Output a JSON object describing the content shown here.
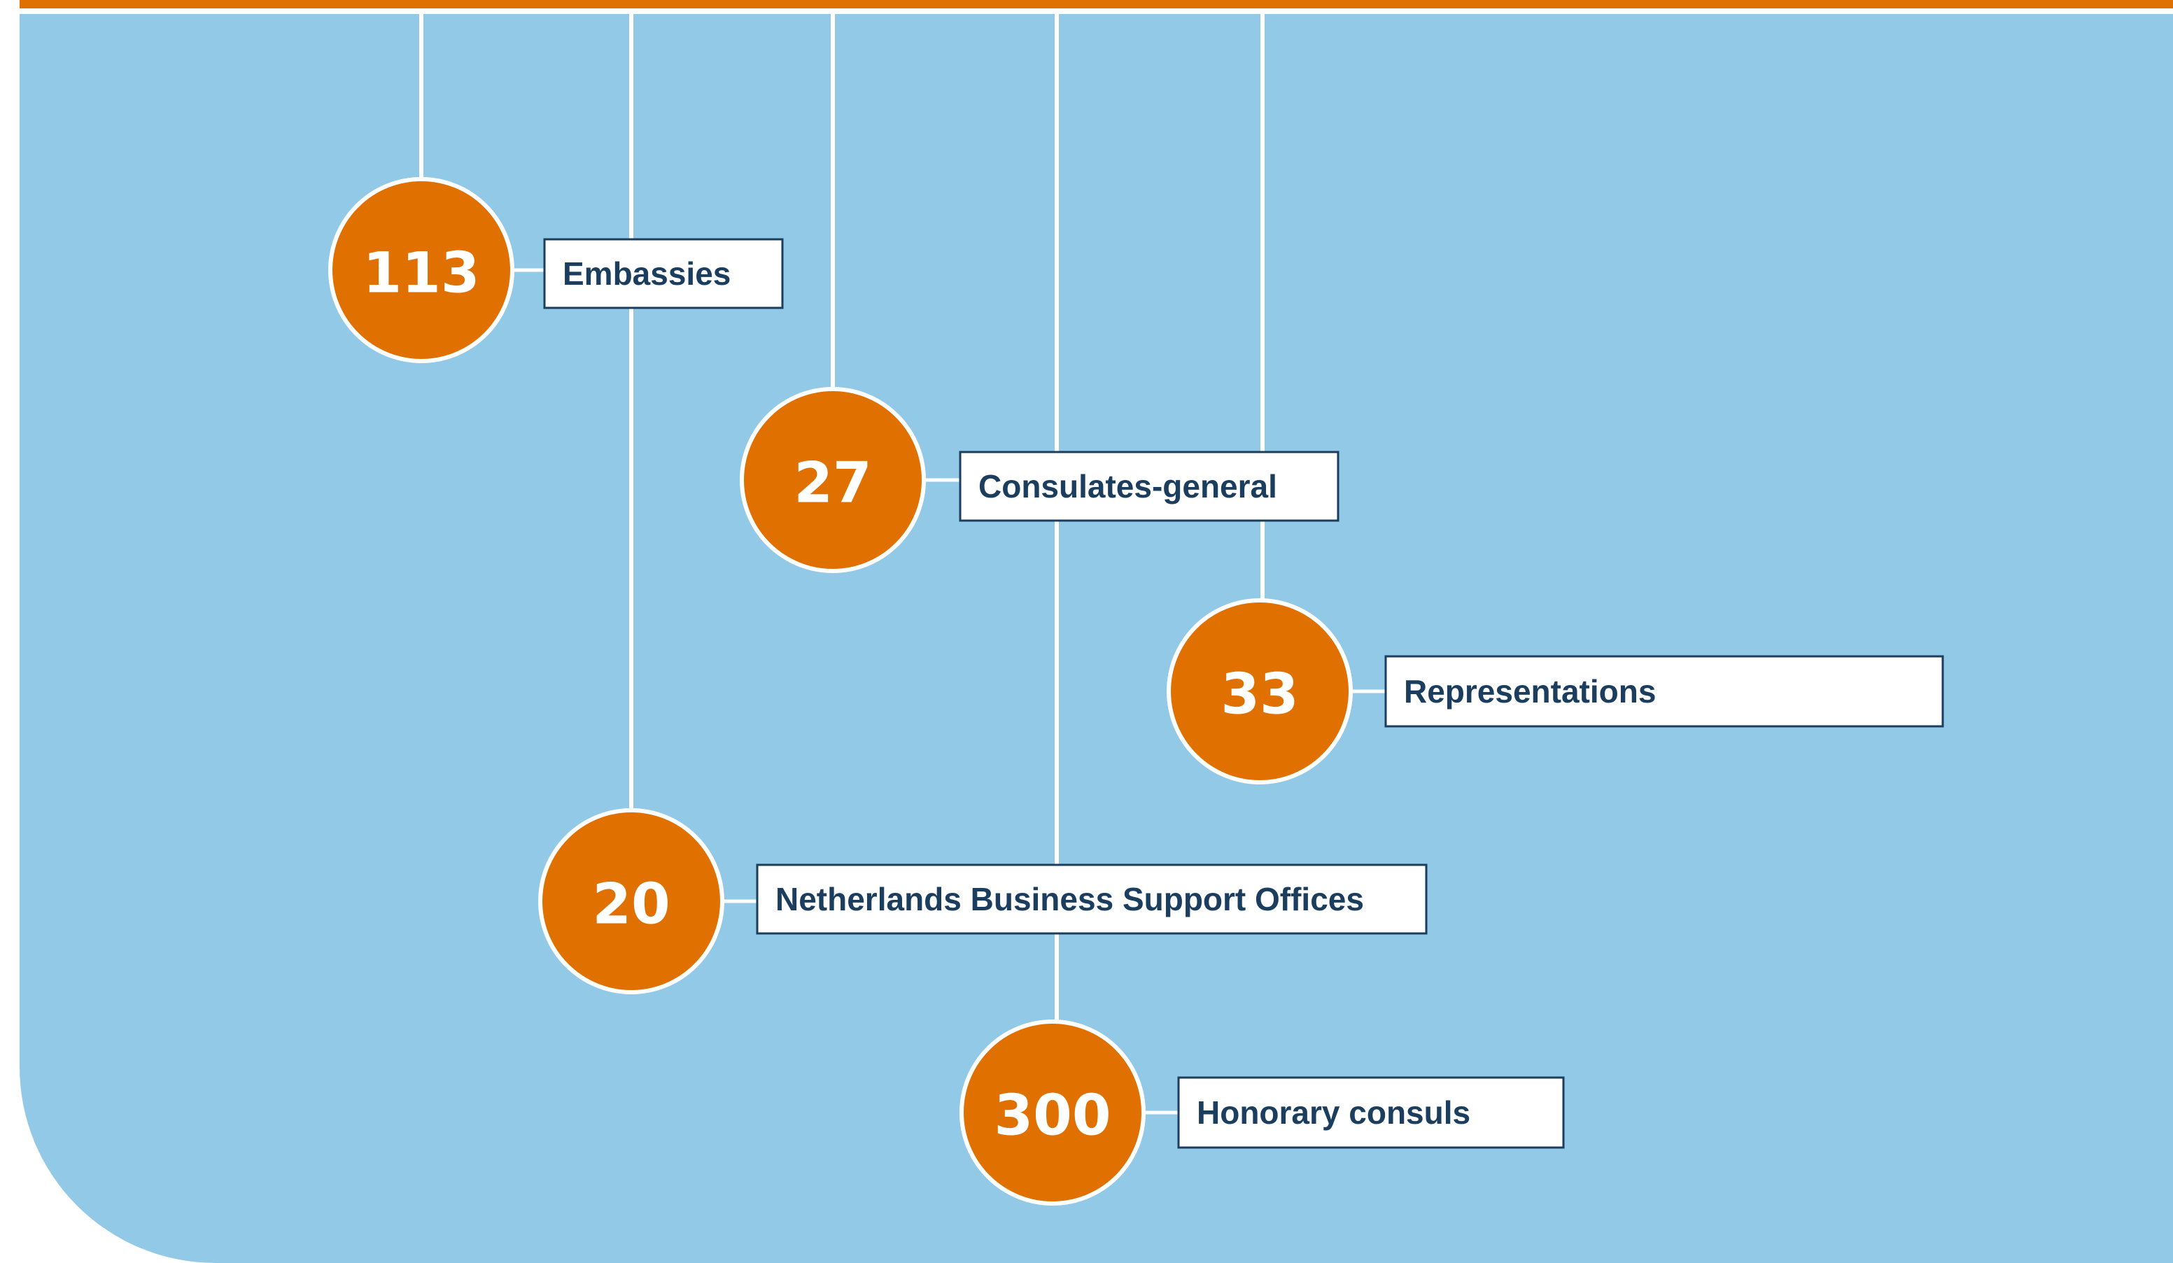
{
  "items": [
    {
      "value": "113",
      "label": "Embassies"
    },
    {
      "value": "27",
      "label": "Consulates-general"
    },
    {
      "value": "33",
      "label": "Representations"
    },
    {
      "value": "20",
      "label": "Netherlands Business Support Offices"
    },
    {
      "value": "300",
      "label": "Honorary consuls"
    }
  ]
}
